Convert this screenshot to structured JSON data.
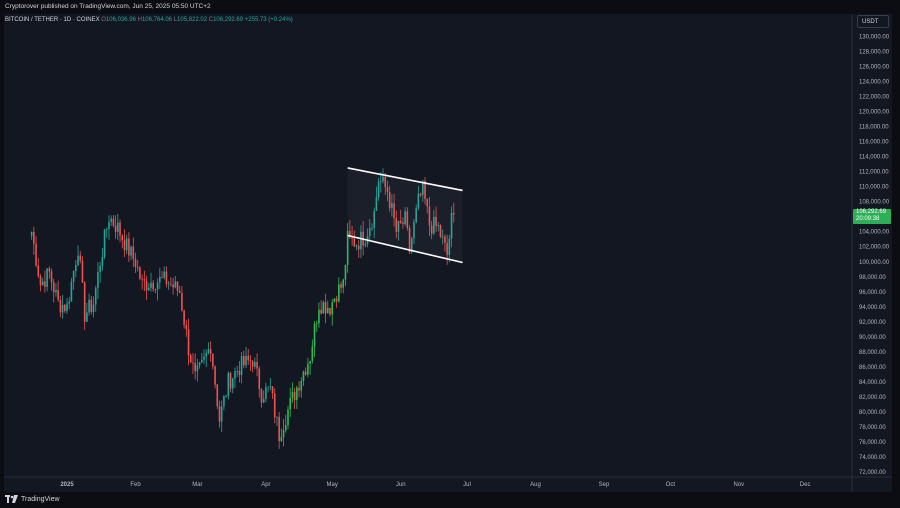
{
  "header": {
    "publisher_line": "Cryptorover published on TradingView.com, Jun 25, 2025 05:50 UTC+2"
  },
  "legend": {
    "symbol": "BITCOIN / TETHER · 1D · COINEX",
    "open_label": "O",
    "open": "106,036.96",
    "high_label": "H",
    "high": "106,764.06",
    "low_label": "L",
    "low": "105,822.02",
    "close_label": "C",
    "close": "106,292.69",
    "change": "+255.73 (+0.24%)"
  },
  "price_axis": {
    "currency": "USDT"
  },
  "last_price": {
    "price": "106,292.69",
    "countdown": "20:09:38",
    "color": "#2fae58"
  },
  "footer": {
    "brand": "TradingView"
  },
  "colors": {
    "up": "#26a69a",
    "up_bright": "#2ebd54",
    "down": "#ef5350",
    "background": "#131722"
  },
  "chart_data": {
    "type": "candlestick",
    "title": "",
    "y_axis": {
      "min": 72000,
      "max": 131000,
      "ticks": [
        72000,
        74000,
        76000,
        78000,
        80000,
        82000,
        84000,
        86000,
        88000,
        90000,
        92000,
        94000,
        96000,
        98000,
        100000,
        102000,
        104000,
        106000,
        108000,
        110000,
        112000,
        114000,
        116000,
        118000,
        120000,
        122000,
        124000,
        126000,
        128000,
        130000
      ]
    },
    "x_axis_labels": [
      "2025",
      "Feb",
      "Mar",
      "Apr",
      "May",
      "Jun",
      "Jul",
      "Aug",
      "Sep",
      "Oct",
      "Nov",
      "Dec"
    ],
    "grid": false,
    "close_path_approx": [
      [
        "2024-12-16",
        104000
      ],
      [
        "2024-12-20",
        97000
      ],
      [
        "2024-12-24",
        98500
      ],
      [
        "2024-12-28",
        94500
      ],
      [
        "2025-01-01",
        94000
      ],
      [
        "2025-01-06",
        102000
      ],
      [
        "2025-01-09",
        93000
      ],
      [
        "2025-01-13",
        94500
      ],
      [
        "2025-01-16",
        100000
      ],
      [
        "2025-01-20",
        106000
      ],
      [
        "2025-01-24",
        104500
      ],
      [
        "2025-01-28",
        102000
      ],
      [
        "2025-02-01",
        100000
      ],
      [
        "2025-02-04",
        97000
      ],
      [
        "2025-02-10",
        97500
      ],
      [
        "2025-02-15",
        97500
      ],
      [
        "2025-02-21",
        96000
      ],
      [
        "2025-02-25",
        88500
      ],
      [
        "2025-02-28",
        84500
      ],
      [
        "2025-03-03",
        86000
      ],
      [
        "2025-03-07",
        89000
      ],
      [
        "2025-03-11",
        79000
      ],
      [
        "2025-03-15",
        84000
      ],
      [
        "2025-03-20",
        86000
      ],
      [
        "2025-03-26",
        87000
      ],
      [
        "2025-03-30",
        82500
      ],
      [
        "2025-04-03",
        83000
      ],
      [
        "2025-04-07",
        77000
      ],
      [
        "2025-04-10",
        79500
      ],
      [
        "2025-04-16",
        84000
      ],
      [
        "2025-04-21",
        87500
      ],
      [
        "2025-04-25",
        94500
      ],
      [
        "2025-04-30",
        94000
      ],
      [
        "2025-05-03",
        96000
      ],
      [
        "2025-05-06",
        97000
      ],
      [
        "2025-05-08",
        103000
      ],
      [
        "2025-05-12",
        102500
      ],
      [
        "2025-05-16",
        103500
      ],
      [
        "2025-05-20",
        106500
      ],
      [
        "2025-05-22",
        111000
      ],
      [
        "2025-05-26",
        109500
      ],
      [
        "2025-05-30",
        104000
      ],
      [
        "2025-06-03",
        105500
      ],
      [
        "2025-06-05",
        101500
      ],
      [
        "2025-06-09",
        108000
      ],
      [
        "2025-06-11",
        109500
      ],
      [
        "2025-06-14",
        105000
      ],
      [
        "2025-06-18",
        104500
      ],
      [
        "2025-06-22",
        100900
      ],
      [
        "2025-06-24",
        105500
      ],
      [
        "2025-06-25",
        106292
      ]
    ],
    "channel": {
      "upper": [
        [
          "2025-05-08",
          112500
        ],
        [
          "2025-06-29",
          109500
        ]
      ],
      "lower": [
        [
          "2025-05-08",
          103500
        ],
        [
          "2025-06-29",
          99900
        ]
      ]
    }
  }
}
